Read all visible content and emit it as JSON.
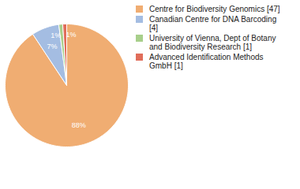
{
  "chart_data": {
    "type": "pie",
    "categories": [
      "Centre for Biodiversity Genomics [47]",
      "Canadian Centre for DNA Barcoding [4]",
      "University of Vienna, Dept of Botany and Biodiversity Research [1]",
      "Advanced Identification Methods GmbH [1]"
    ],
    "values": [
      88,
      7,
      1,
      1
    ],
    "value_labels": [
      "88%",
      "7%",
      "1%",
      "1%"
    ],
    "colors": [
      "#f0ad72",
      "#a4bde2",
      "#a8cf8b",
      "#e06d5a"
    ],
    "data_labels": true,
    "legend": "right"
  }
}
